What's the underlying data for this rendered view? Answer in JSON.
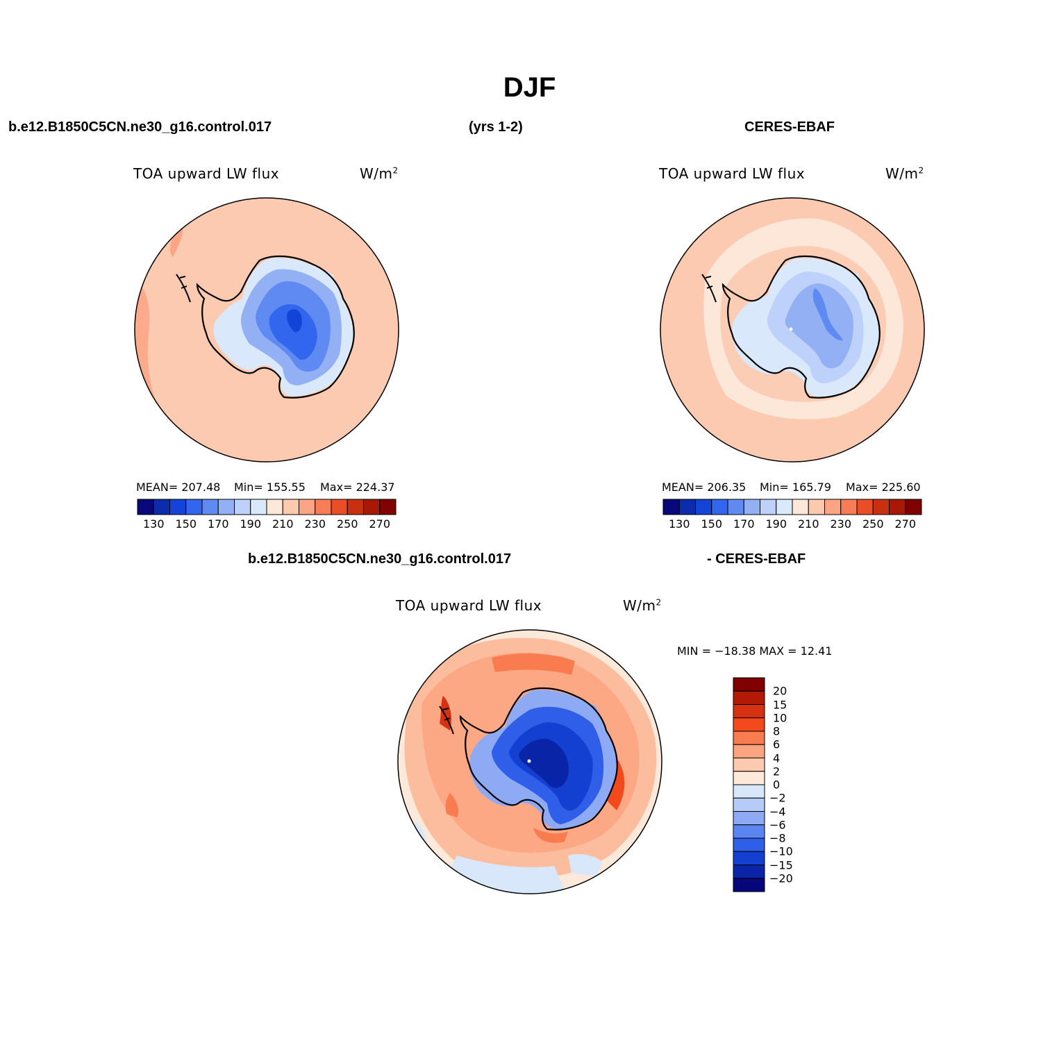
{
  "figure": {
    "title": "DJF",
    "case_name": "b.e12.B1850C5CN.ne30_g16.control.017",
    "years": "(yrs 1-2)",
    "obs_name": "CERES-EBAF"
  },
  "panels": [
    {
      "variable": "TOA upward LW flux",
      "units": "W/m",
      "units_sup": "2",
      "stats": {
        "mean": "MEAN= 207.48",
        "min": "Min= 155.55",
        "max": "Max= 224.37"
      }
    },
    {
      "variable": "TOA upward LW flux",
      "units": "W/m",
      "units_sup": "2",
      "stats": {
        "mean": "MEAN= 206.35",
        "min": "Min= 165.79",
        "max": "Max= 225.60"
      }
    }
  ],
  "abs_colorbar": {
    "colors": [
      "#08087a",
      "#0b2cab",
      "#1443d8",
      "#3366ee",
      "#5f8af2",
      "#93b0f5",
      "#bdd1fa",
      "#d9e8fa",
      "#fde7d9",
      "#fdcab0",
      "#fca584",
      "#f77d56",
      "#ea4e26",
      "#c93010",
      "#a81806",
      "#800000"
    ],
    "tick_labels": [
      "130",
      "150",
      "170",
      "190",
      "210",
      "230",
      "250",
      "270"
    ]
  },
  "diff_panel": {
    "left_header": "b.e12.B1850C5CN.ne30_g16.control.017",
    "right_header": "- CERES-EBAF",
    "variable": "TOA upward LW flux",
    "units": "W/m",
    "units_sup": "2",
    "minmax": "MIN = −18.38 MAX =   12.41"
  },
  "diff_colorbar": {
    "colors_top_to_bottom": [
      "#800000",
      "#b21a06",
      "#d63212",
      "#f24a1c",
      "#f87c50",
      "#fca480",
      "#fdcab0",
      "#fde9da",
      "#d8e7fa",
      "#b6ccf8",
      "#8eaaf4",
      "#5b85f0",
      "#2f5ee8",
      "#1440d2",
      "#0a24a8",
      "#06067a"
    ],
    "tick_labels": [
      "20",
      "15",
      "10",
      "8",
      "6",
      "4",
      "2",
      "0",
      "−2",
      "−4",
      "−6",
      "−8",
      "−10",
      "−15",
      "−20"
    ]
  },
  "colors": {
    "ocean_salmon": "#fccab0",
    "ocean_dark_salmon": "#fca584",
    "ice_blue": "#5f8af2",
    "deep_blue": "#1443d8",
    "coast": "#000000"
  }
}
